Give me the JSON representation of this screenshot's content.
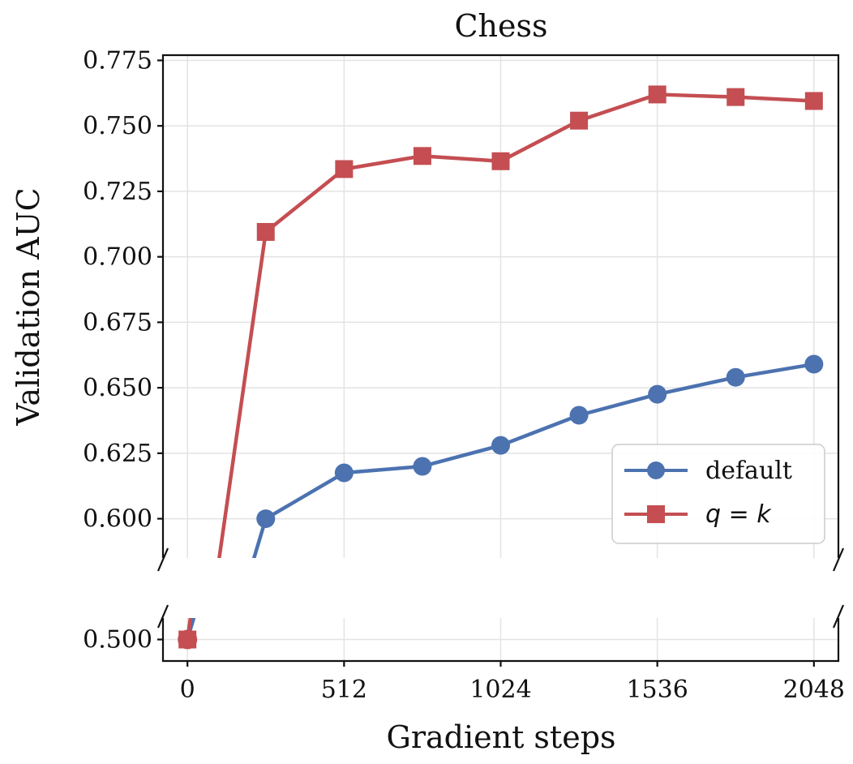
{
  "chart_data": {
    "type": "line",
    "title": "Chess",
    "xlabel": "Gradient steps",
    "ylabel": "Validation AUC",
    "x_ticks": [
      0,
      512,
      1024,
      1536,
      2048
    ],
    "x_tick_labels": [
      "0",
      "512",
      "1024",
      "1536",
      "2048"
    ],
    "y_ticks_upper": [
      "0.600",
      "0.625",
      "0.650",
      "0.675",
      "0.700",
      "0.725",
      "0.750",
      "0.775"
    ],
    "y_ticks_lower": [
      "0.500"
    ],
    "ylim_upper": [
      0.585,
      0.777
    ],
    "ylim_lower": [
      0.492,
      0.508
    ],
    "xlim": [
      -80,
      2128
    ],
    "broken_y_axis": true,
    "grid": true,
    "legend_position": "lower-right",
    "colors": {
      "default": "#4c72b0",
      "qk": "#c44e52"
    },
    "series": [
      {
        "name": "default",
        "marker": "circle",
        "color": "#4c72b0",
        "x": [
          0,
          256,
          512,
          768,
          1024,
          1280,
          1536,
          1792,
          2048
        ],
        "y": [
          0.5,
          0.6,
          0.6175,
          0.62,
          0.628,
          0.6395,
          0.6475,
          0.654,
          0.659
        ]
      },
      {
        "name": "q = k",
        "marker": "square",
        "color": "#c44e52",
        "x": [
          0,
          256,
          512,
          768,
          1024,
          1280,
          1536,
          1792,
          2048
        ],
        "y": [
          0.5,
          0.7095,
          0.7335,
          0.7385,
          0.7365,
          0.752,
          0.762,
          0.761,
          0.7595
        ]
      }
    ]
  }
}
